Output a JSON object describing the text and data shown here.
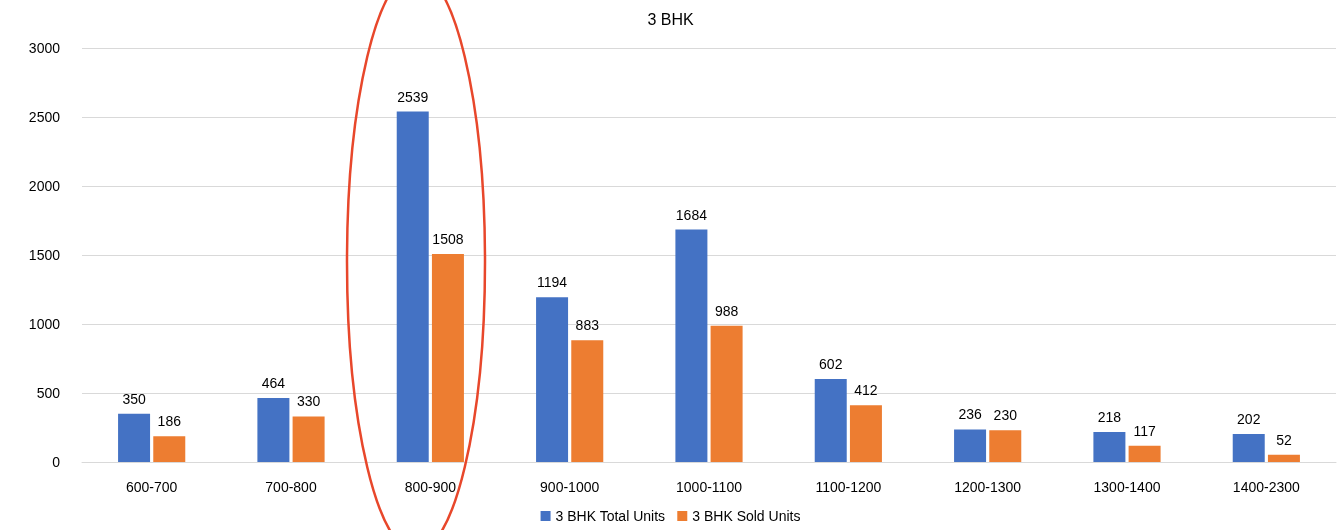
{
  "chart_data": {
    "type": "bar",
    "title": "3 BHK",
    "categories": [
      "600-700",
      "700-800",
      "800-900",
      "900-1000",
      "1000-1100",
      "1100-1200",
      "1200-1300",
      "1300-1400",
      "1400-2300"
    ],
    "series": [
      {
        "name": "3 BHK Total Units",
        "color": "#4472c4",
        "values": [
          350,
          464,
          2539,
          1194,
          1684,
          602,
          236,
          218,
          202
        ]
      },
      {
        "name": "3 BHK Sold Units",
        "color": "#ed7d31",
        "values": [
          186,
          330,
          1508,
          883,
          988,
          412,
          230,
          117,
          52
        ]
      }
    ],
    "ylim": [
      0,
      3000
    ],
    "yticks": [
      0,
      500,
      1000,
      1500,
      2000,
      2500,
      3000
    ],
    "grid": "y",
    "legend": "bottom",
    "data_labels": true
  }
}
